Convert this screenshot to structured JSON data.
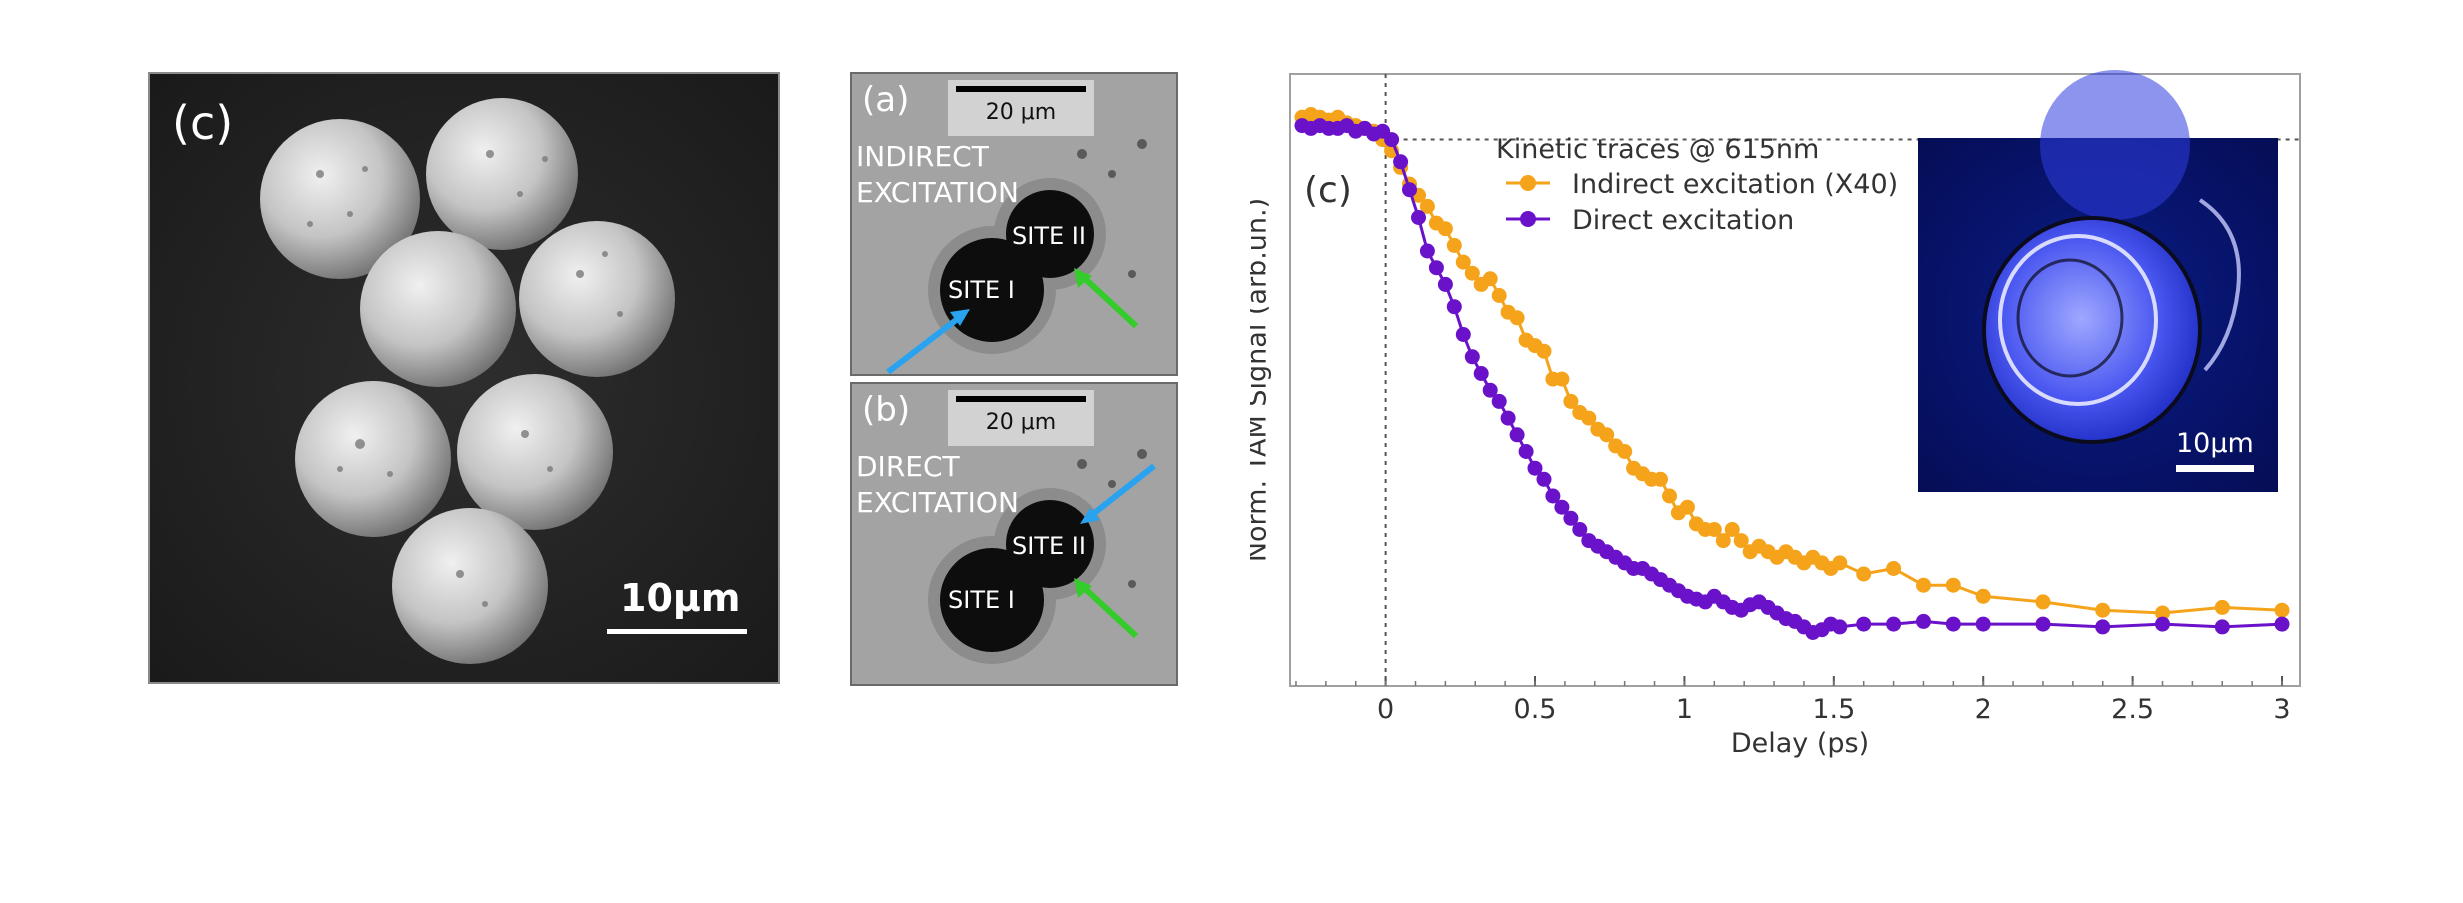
{
  "sem_panel": {
    "label": "(c)",
    "scale_label": "10μm"
  },
  "micrograph_a": {
    "label": "(a)",
    "scale_label": "20 μm",
    "title_line1": "INDIRECT",
    "title_line2": "EXCITATION",
    "site1": "SITE I",
    "site2": "SITE II"
  },
  "micrograph_b": {
    "label": "(b)",
    "scale_label": "20 μm",
    "title_line1": "DIRECT",
    "title_line2": "EXCITATION",
    "site1": "SITE I",
    "site2": "SITE II"
  },
  "colors": {
    "indirect": "#f5a31a",
    "direct": "#6a12c9",
    "arrow_blue": "#29a3f0",
    "arrow_green": "#33cc2a"
  },
  "chart_data": {
    "type": "line",
    "panel_label": "(c)",
    "xlabel": "Delay (ps)",
    "ylabel": "Norm. TAM Signal (arb.un.)",
    "legend_title": "Kinetic traces @ 615nm",
    "xlim": [
      -0.32,
      3.02
    ],
    "ylim": [
      0,
      1.0
    ],
    "x_ticks": [
      0,
      0.5,
      1,
      1.5,
      2,
      2.5,
      3
    ],
    "x_tick_labels": [
      "0",
      "0.5",
      "1",
      "1.5",
      "2",
      "2.5",
      "3"
    ],
    "y_ticks_labeled": false,
    "reference_lines": {
      "vertical_at_x": 0,
      "horizontal_at_y": 0.92
    },
    "legend_position": "top-center",
    "inset": {
      "scale_label": "10μm"
    },
    "series": [
      {
        "name": "Indirect excitation (X40)",
        "color": "#f5a31a",
        "x": [
          -0.28,
          -0.25,
          -0.22,
          -0.19,
          -0.16,
          -0.13,
          -0.1,
          -0.07,
          -0.04,
          -0.01,
          0.02,
          0.05,
          0.08,
          0.11,
          0.14,
          0.17,
          0.2,
          0.23,
          0.26,
          0.29,
          0.32,
          0.35,
          0.38,
          0.41,
          0.44,
          0.47,
          0.5,
          0.53,
          0.56,
          0.59,
          0.62,
          0.65,
          0.68,
          0.71,
          0.74,
          0.77,
          0.8,
          0.83,
          0.86,
          0.89,
          0.92,
          0.95,
          0.98,
          1.01,
          1.04,
          1.07,
          1.1,
          1.13,
          1.16,
          1.19,
          1.22,
          1.25,
          1.28,
          1.31,
          1.34,
          1.37,
          1.4,
          1.43,
          1.46,
          1.49,
          1.52,
          1.6,
          1.7,
          1.8,
          1.9,
          2.0,
          2.2,
          2.4,
          2.6,
          2.8,
          3.0
        ],
        "y": [
          0.96,
          0.965,
          0.96,
          0.955,
          0.96,
          0.95,
          0.945,
          0.94,
          0.935,
          0.92,
          0.9,
          0.87,
          0.84,
          0.82,
          0.8,
          0.77,
          0.76,
          0.73,
          0.7,
          0.68,
          0.66,
          0.67,
          0.64,
          0.61,
          0.6,
          0.56,
          0.55,
          0.54,
          0.49,
          0.49,
          0.45,
          0.43,
          0.42,
          0.4,
          0.39,
          0.37,
          0.36,
          0.33,
          0.32,
          0.31,
          0.31,
          0.28,
          0.25,
          0.26,
          0.23,
          0.22,
          0.22,
          0.2,
          0.22,
          0.2,
          0.18,
          0.19,
          0.18,
          0.17,
          0.18,
          0.17,
          0.16,
          0.17,
          0.16,
          0.15,
          0.16,
          0.14,
          0.15,
          0.12,
          0.12,
          0.1,
          0.09,
          0.075,
          0.07,
          0.08,
          0.075
        ]
      },
      {
        "name": "Direct excitation",
        "color": "#6a12c9",
        "x": [
          -0.28,
          -0.25,
          -0.22,
          -0.19,
          -0.16,
          -0.13,
          -0.1,
          -0.07,
          -0.04,
          -0.01,
          0.02,
          0.05,
          0.08,
          0.11,
          0.14,
          0.17,
          0.2,
          0.23,
          0.26,
          0.29,
          0.32,
          0.35,
          0.38,
          0.41,
          0.44,
          0.47,
          0.5,
          0.53,
          0.56,
          0.59,
          0.62,
          0.65,
          0.68,
          0.71,
          0.74,
          0.77,
          0.8,
          0.83,
          0.86,
          0.89,
          0.92,
          0.95,
          0.98,
          1.01,
          1.04,
          1.07,
          1.1,
          1.13,
          1.16,
          1.19,
          1.22,
          1.25,
          1.28,
          1.31,
          1.34,
          1.37,
          1.4,
          1.43,
          1.46,
          1.49,
          1.52,
          1.6,
          1.7,
          1.8,
          1.9,
          2.0,
          2.2,
          2.4,
          2.6,
          2.8,
          3.0
        ],
        "y": [
          0.945,
          0.94,
          0.945,
          0.94,
          0.94,
          0.945,
          0.935,
          0.94,
          0.93,
          0.935,
          0.92,
          0.88,
          0.83,
          0.78,
          0.72,
          0.69,
          0.66,
          0.62,
          0.57,
          0.53,
          0.5,
          0.47,
          0.45,
          0.42,
          0.39,
          0.36,
          0.33,
          0.31,
          0.28,
          0.26,
          0.24,
          0.22,
          0.2,
          0.19,
          0.18,
          0.17,
          0.16,
          0.15,
          0.15,
          0.14,
          0.13,
          0.12,
          0.11,
          0.1,
          0.095,
          0.09,
          0.1,
          0.09,
          0.08,
          0.075,
          0.085,
          0.09,
          0.08,
          0.07,
          0.06,
          0.055,
          0.045,
          0.035,
          0.04,
          0.05,
          0.045,
          0.05,
          0.05,
          0.055,
          0.05,
          0.05,
          0.05,
          0.045,
          0.05,
          0.045,
          0.05
        ]
      }
    ]
  }
}
